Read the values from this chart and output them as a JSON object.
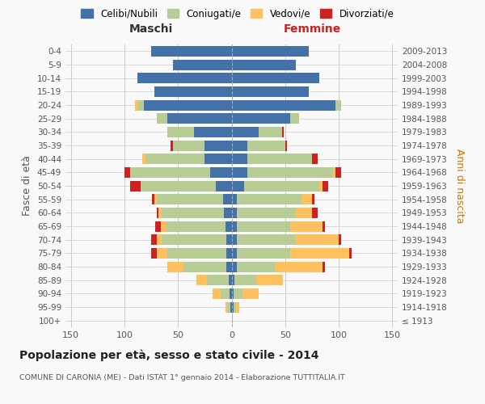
{
  "age_groups": [
    "100+",
    "95-99",
    "90-94",
    "85-89",
    "80-84",
    "75-79",
    "70-74",
    "65-69",
    "60-64",
    "55-59",
    "50-54",
    "45-49",
    "40-44",
    "35-39",
    "30-34",
    "25-29",
    "20-24",
    "15-19",
    "10-14",
    "5-9",
    "0-4"
  ],
  "birth_years": [
    "≤ 1913",
    "1914-1918",
    "1919-1923",
    "1924-1928",
    "1929-1933",
    "1934-1938",
    "1939-1943",
    "1944-1948",
    "1949-1953",
    "1954-1958",
    "1959-1963",
    "1964-1968",
    "1969-1973",
    "1974-1978",
    "1979-1983",
    "1984-1988",
    "1989-1993",
    "1994-1998",
    "1999-2003",
    "2004-2008",
    "2009-2013"
  ],
  "male": {
    "celibi": [
      0,
      1,
      2,
      3,
      5,
      5,
      5,
      6,
      7,
      8,
      15,
      20,
      25,
      25,
      35,
      60,
      82,
      72,
      88,
      55,
      75
    ],
    "coniugati": [
      0,
      3,
      8,
      20,
      40,
      55,
      60,
      55,
      58,
      62,
      70,
      75,
      55,
      30,
      25,
      10,
      5,
      0,
      0,
      0,
      0
    ],
    "vedovi": [
      0,
      2,
      8,
      10,
      15,
      10,
      5,
      5,
      3,
      2,
      0,
      0,
      3,
      0,
      0,
      0,
      3,
      0,
      0,
      0,
      0
    ],
    "divorziati": [
      0,
      0,
      0,
      0,
      0,
      5,
      5,
      5,
      2,
      2,
      10,
      5,
      0,
      2,
      0,
      0,
      0,
      0,
      0,
      0,
      0
    ]
  },
  "female": {
    "nubili": [
      0,
      2,
      2,
      3,
      5,
      5,
      5,
      5,
      5,
      5,
      12,
      15,
      15,
      15,
      25,
      55,
      97,
      72,
      82,
      60,
      72
    ],
    "coniugate": [
      0,
      2,
      8,
      20,
      35,
      50,
      55,
      50,
      55,
      60,
      70,
      80,
      60,
      35,
      22,
      8,
      5,
      0,
      0,
      0,
      0
    ],
    "vedove": [
      0,
      3,
      15,
      25,
      45,
      55,
      40,
      30,
      15,
      10,
      3,
      2,
      0,
      0,
      0,
      0,
      0,
      0,
      0,
      0,
      0
    ],
    "divorziate": [
      0,
      0,
      0,
      0,
      2,
      2,
      2,
      2,
      5,
      2,
      5,
      5,
      5,
      2,
      2,
      0,
      0,
      0,
      0,
      0,
      0
    ]
  },
  "colors": {
    "celibi": "#4472a8",
    "coniugati": "#b8cc96",
    "vedovi": "#ffc060",
    "divorziati": "#cc2222"
  },
  "legend_labels": [
    "Celibi/Nubili",
    "Coniugati/e",
    "Vedovi/e",
    "Divorziati/e"
  ],
  "title": "Popolazione per età, sesso e stato civile - 2014",
  "subtitle": "COMUNE DI CARONIA (ME) - Dati ISTAT 1° gennaio 2014 - Elaborazione TUTTITALIA.IT",
  "ylabel_left": "Fasce di età",
  "ylabel_right": "Anni di nascita",
  "xlabel_left": "Maschi",
  "xlabel_right": "Femmine",
  "xlim": 155,
  "background_color": "#f9f9f9",
  "grid_color": "#cccccc"
}
